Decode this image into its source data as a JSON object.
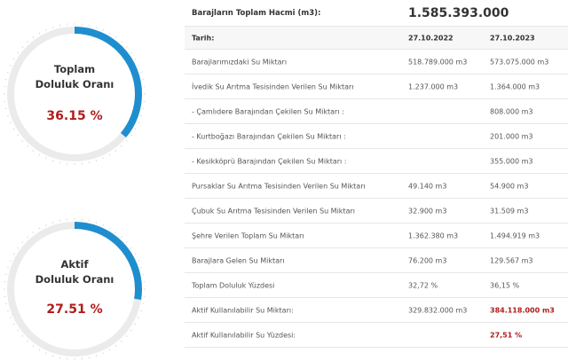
{
  "gauges": [
    {
      "line1": "Toplam",
      "line2": "Doluluk Oranı",
      "value": "36.15 %",
      "percent": 36.15
    },
    {
      "line1": "Aktif",
      "line2": "Doluluk Oranı",
      "value": "27.51 %",
      "percent": 27.51
    }
  ],
  "table": {
    "header": {
      "label": "Barajların Toplam Hacmi (m3):",
      "value": "1.585.393.000"
    },
    "date_row": {
      "label": "Tarih:",
      "col1": "27.10.2022",
      "col2": "27.10.2023"
    },
    "rows": [
      {
        "label": "Barajlarımızdaki Su Miktarı",
        "v1": "518.789.000 m3",
        "v2": "573.075.000 m3"
      },
      {
        "label": "İvedik Su Arıtma Tesisinden Verilen Su Miktarı",
        "v1": "1.237.000 m3",
        "v2": "1.364.000 m3"
      },
      {
        "label": "- Çamlıdere Barajından Çekilen Su Miktarı :",
        "v1": "",
        "v2": "808.000 m3"
      },
      {
        "label": "- Kurtboğazı Barajından Çekilen Su Miktarı :",
        "v1": "",
        "v2": "201.000 m3"
      },
      {
        "label": "- Kesikköprü Barajından Çekilen Su Miktarı :",
        "v1": "",
        "v2": "355.000 m3"
      },
      {
        "label": "Pursaklar Su Arıtma Tesisinden Verilen Su Miktarı",
        "v1": "49.140 m3",
        "v2": "54.900 m3"
      },
      {
        "label": "Çubuk Su Arıtma Tesisinden Verilen Su Miktarı",
        "v1": "32.900 m3",
        "v2": "31.509 m3"
      },
      {
        "label": "Şehre Verilen Toplam Su Miktarı",
        "v1": "1.362.380 m3",
        "v2": "1.494.919 m3"
      },
      {
        "label": "Barajlara Gelen Su Miktarı",
        "v1": "76.200 m3",
        "v2": "129.567 m3"
      },
      {
        "label": "Toplam Doluluk Yüzdesi",
        "v1": "32,72 %",
        "v2": "36,15 %"
      },
      {
        "label": "Aktif Kullanılabilir Su Miktarı:",
        "v1": "329.832.000 m3",
        "v2": "384.118.000 m3",
        "highlight": true
      },
      {
        "label": "Aktif Kullanılabilir Su Yüzdesi:",
        "v1": "",
        "v2": "27,51 %",
        "highlight": true
      }
    ]
  },
  "colors": {
    "gauge_fill": "#1f8ecf",
    "gauge_track": "#ebebeb",
    "accent_red": "#b01c1c"
  }
}
